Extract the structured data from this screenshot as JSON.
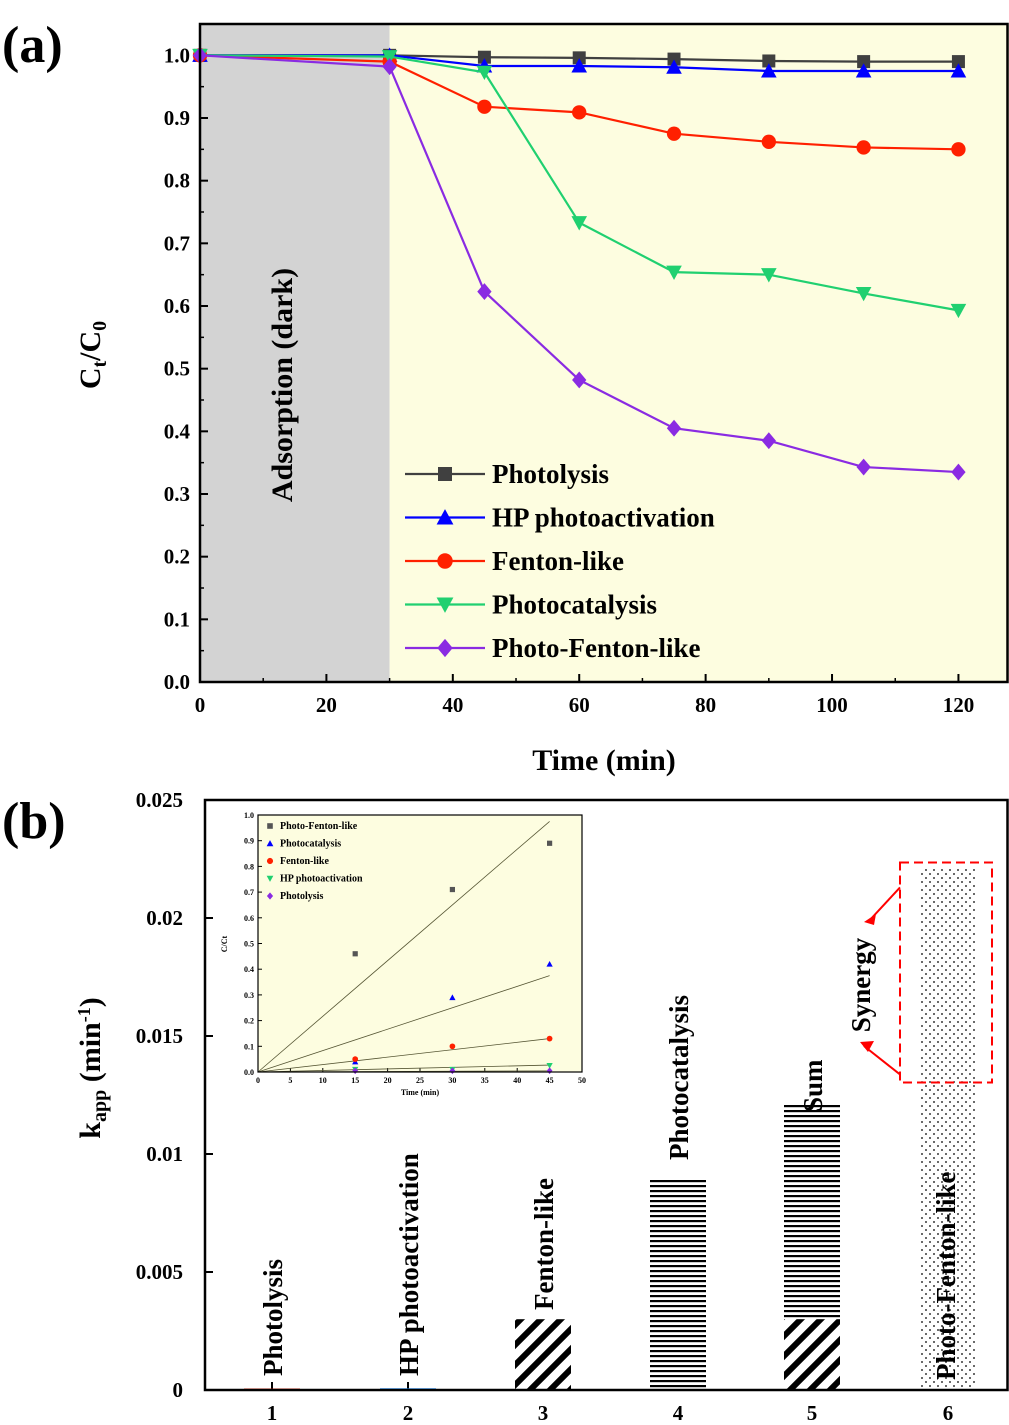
{
  "panel_a": {
    "label": "(a)",
    "region_label": "Adsorption (dark)",
    "ylabel_main": "C",
    "ylabel_sub1": "t",
    "ylabel_slash": "/C",
    "ylabel_sub2": "0"
  },
  "panel_b": {
    "label": "(b)",
    "synergy_label": "Synergy",
    "ylabel_main": "k",
    "ylabel_sub": "app",
    "ylabel_unit": " (min",
    "ylabel_sup": "-1",
    "ylabel_close": ")"
  },
  "colors": {
    "dark_region": "#d3d3d3",
    "light_region": "#fdfde0",
    "photolysis": "#404040",
    "hp": "#0000ff",
    "fenton": "#ff2000",
    "photocat": "#20d070",
    "photofenton": "#8a2be2",
    "synergy_box": "#ff0000"
  },
  "chart_data": [
    {
      "type": "line",
      "xlabel": "Time (min)",
      "ylabel": "Ct/C0",
      "xlim": [
        0,
        128
      ],
      "ylim": [
        0,
        1.05
      ],
      "xticks": [
        "0",
        "20",
        "40",
        "60",
        "80",
        "100",
        "120"
      ],
      "yticks": [
        "0.0",
        "0.1",
        "0.2",
        "0.3",
        "0.4",
        "0.5",
        "0.6",
        "0.7",
        "0.8",
        "0.9",
        "1.0"
      ],
      "shaded_regions": [
        {
          "from": 0,
          "to": 30,
          "label": "Adsorption (dark)"
        },
        {
          "from": 30,
          "to": 128,
          "label": ""
        }
      ],
      "legend_position": "bottom-right",
      "series": [
        {
          "name": "Photolysis",
          "marker": "square",
          "x": [
            0,
            30,
            45,
            60,
            75,
            90,
            105,
            120
          ],
          "y": [
            1.0,
            1.0,
            0.997,
            0.996,
            0.994,
            0.991,
            0.99,
            0.99
          ]
        },
        {
          "name": "HP photoactivation",
          "marker": "triangle-up",
          "x": [
            0,
            30,
            45,
            60,
            75,
            90,
            105,
            120
          ],
          "y": [
            1.0,
            1.0,
            0.983,
            0.983,
            0.981,
            0.975,
            0.975,
            0.975
          ]
        },
        {
          "name": "Fenton-like",
          "marker": "circle",
          "x": [
            0,
            30,
            45,
            60,
            75,
            90,
            105,
            120
          ],
          "y": [
            1.0,
            0.99,
            0.918,
            0.909,
            0.875,
            0.862,
            0.853,
            0.85
          ]
        },
        {
          "name": "Photocatalysis",
          "marker": "triangle-down",
          "x": [
            0,
            30,
            45,
            60,
            75,
            90,
            105,
            120
          ],
          "y": [
            1.0,
            0.998,
            0.973,
            0.733,
            0.654,
            0.65,
            0.62,
            0.593
          ]
        },
        {
          "name": "Photo-Fenton-like",
          "marker": "diamond",
          "x": [
            0,
            30,
            45,
            60,
            75,
            90,
            105,
            120
          ],
          "y": [
            1.0,
            0.982,
            0.623,
            0.482,
            0.405,
            0.385,
            0.343,
            0.335
          ]
        }
      ]
    },
    {
      "type": "bar",
      "ylabel": "kapp (min-1)",
      "ylim": [
        0,
        0.025
      ],
      "yticks": [
        "0",
        "0.005",
        "0.01",
        "0.015",
        "0.02",
        "0.025"
      ],
      "categories": [
        "1",
        "2",
        "3",
        "4",
        "5",
        "6"
      ],
      "bar_labels": [
        "Photolysis",
        "HP photoactivation",
        "Fenton-like",
        "Photocatalysis",
        "Sum",
        "Photo-Fenton-like"
      ],
      "values": [
        2e-05,
        3e-05,
        0.003,
        0.0089,
        0.0121,
        0.0221
      ],
      "sum_fenton_part": 0.003,
      "synergy_range": [
        0.0121,
        0.0221
      ],
      "annotations": [
        "Synergy"
      ]
    },
    {
      "type": "scatter",
      "inset": true,
      "xlabel": "Time (min)",
      "ylabel": "C/Ct",
      "xlim": [
        0,
        50
      ],
      "ylim": [
        0,
        1.0
      ],
      "xticks": [
        "0",
        "5",
        "10",
        "15",
        "20",
        "25",
        "30",
        "35",
        "40",
        "45",
        "50"
      ],
      "yticks": [
        "0.0",
        "0.1",
        "0.2",
        "0.3",
        "0.4",
        "0.5",
        "0.6",
        "0.7",
        "0.8",
        "0.9",
        "1.0"
      ],
      "legend_position": "top-left",
      "series": [
        {
          "name": "Photo-Fenton-like",
          "marker": "square",
          "x": [
            15,
            30,
            45
          ],
          "y": [
            0.46,
            0.71,
            0.89
          ],
          "fit_slope": 0.02167
        },
        {
          "name": "Photocatalysis",
          "marker": "triangle-up",
          "x": [
            15,
            30,
            45
          ],
          "y": [
            0.04,
            0.29,
            0.42
          ],
          "fit_slope": 0.00833
        },
        {
          "name": "Fenton-like",
          "marker": "circle",
          "x": [
            15,
            30,
            45
          ],
          "y": [
            0.05,
            0.1,
            0.13
          ],
          "fit_slope": 0.00289
        },
        {
          "name": "HP photoactivation",
          "marker": "triangle-down",
          "x": [
            15,
            30,
            45
          ],
          "y": [
            0.01,
            0.01,
            0.025
          ],
          "fit_slope": 0.0006
        },
        {
          "name": "Photolysis",
          "marker": "diamond",
          "x": [
            15,
            30,
            45
          ],
          "y": [
            0.005,
            0.005,
            0.005
          ],
          "fit_slope": 0.0001
        }
      ]
    }
  ]
}
